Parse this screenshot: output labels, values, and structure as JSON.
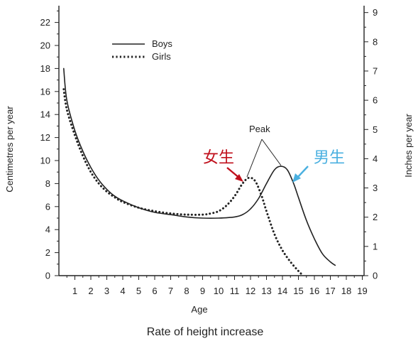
{
  "chart_data": {
    "type": "line",
    "title": "Rate of height increase",
    "xlabel": "Age",
    "ylabel_left": "Centimetres per year",
    "ylabel_right": "Inches per year",
    "xlim": [
      0,
      19
    ],
    "ylim": [
      0,
      23.5
    ],
    "x_ticks": [
      1,
      2,
      3,
      4,
      5,
      6,
      7,
      8,
      9,
      10,
      11,
      12,
      13,
      14,
      15,
      16,
      17,
      18,
      19
    ],
    "y_ticks_left": [
      0,
      2,
      4,
      6,
      8,
      10,
      12,
      14,
      16,
      18,
      20,
      22
    ],
    "y_ticks_right": [
      0,
      1,
      2,
      3,
      4,
      5,
      6,
      7,
      8,
      9
    ],
    "grid": false,
    "legend_position": "top-left",
    "series": [
      {
        "name": "Boys",
        "style": "solid",
        "points": [
          [
            0.3,
            18.0
          ],
          [
            0.5,
            15.2
          ],
          [
            1,
            12.6
          ],
          [
            1.5,
            10.8
          ],
          [
            2,
            9.4
          ],
          [
            2.5,
            8.3
          ],
          [
            3,
            7.5
          ],
          [
            3.5,
            6.9
          ],
          [
            4,
            6.5
          ],
          [
            5,
            5.9
          ],
          [
            6,
            5.5
          ],
          [
            7,
            5.3
          ],
          [
            8,
            5.1
          ],
          [
            9,
            5.0
          ],
          [
            10,
            5.0
          ],
          [
            11,
            5.1
          ],
          [
            11.5,
            5.3
          ],
          [
            12,
            5.8
          ],
          [
            12.5,
            6.7
          ],
          [
            13,
            8.0
          ],
          [
            13.5,
            9.2
          ],
          [
            13.9,
            9.5
          ],
          [
            14.3,
            9.2
          ],
          [
            14.7,
            8.0
          ],
          [
            15,
            6.8
          ],
          [
            15.5,
            4.8
          ],
          [
            16,
            3.2
          ],
          [
            16.5,
            1.9
          ],
          [
            17,
            1.2
          ],
          [
            17.3,
            0.9
          ]
        ]
      },
      {
        "name": "Girls",
        "style": "dotted",
        "points": [
          [
            0.3,
            16.2
          ],
          [
            0.5,
            14.4
          ],
          [
            1,
            12.2
          ],
          [
            1.5,
            10.4
          ],
          [
            2,
            9.0
          ],
          [
            2.5,
            8.0
          ],
          [
            3,
            7.3
          ],
          [
            3.5,
            6.8
          ],
          [
            4,
            6.4
          ],
          [
            5,
            5.9
          ],
          [
            6,
            5.6
          ],
          [
            7,
            5.4
          ],
          [
            8,
            5.3
          ],
          [
            9,
            5.3
          ],
          [
            9.5,
            5.4
          ],
          [
            10,
            5.6
          ],
          [
            10.5,
            6.1
          ],
          [
            11,
            6.9
          ],
          [
            11.5,
            8.0
          ],
          [
            11.9,
            8.5
          ],
          [
            12.3,
            8.2
          ],
          [
            12.7,
            6.9
          ],
          [
            13,
            5.6
          ],
          [
            13.5,
            3.6
          ],
          [
            14,
            2.2
          ],
          [
            14.5,
            1.2
          ],
          [
            15,
            0.4
          ],
          [
            15.3,
            0.0
          ]
        ]
      }
    ],
    "annotations": {
      "peak_label": "Peak",
      "girl_label": "女生",
      "boy_label": "男生"
    }
  },
  "colors": {
    "axis": "#222222",
    "girl_annotation": "#c0101c",
    "boy_annotation": "#4ab0e0"
  }
}
